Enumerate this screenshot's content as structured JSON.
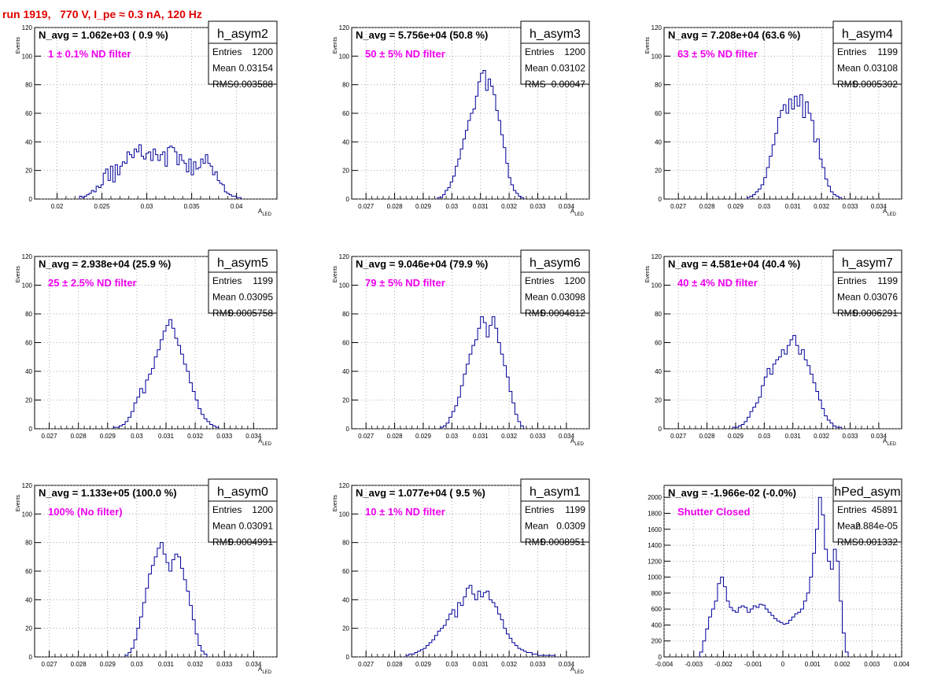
{
  "header": {
    "title": "run 1919,   770 V, I_pe ≈ 0.3 nA, 120 Hz"
  },
  "chart_data": [
    {
      "type": "histogram",
      "name": "h_asym2",
      "navg": "N_avg = 1.062e+03 ( 0.9 %)",
      "filter": "1 ± 0.1% ND filter",
      "stats": {
        "entries": "1200",
        "mean": "0.03154",
        "rms": "0.003588"
      },
      "xlabel": "A_LED",
      "ylabel": "Events",
      "xlim": [
        0.0175,
        0.0445
      ],
      "ylim": [
        0,
        120
      ],
      "xticks": [
        0.02,
        0.025,
        0.03,
        0.035,
        0.04
      ],
      "xticklabels": [
        "0.02",
        "0.025",
        "0.03",
        "0.035",
        "0.04"
      ],
      "yticks": [
        0,
        20,
        40,
        60,
        80,
        100,
        120
      ],
      "yticklabels": [
        "0",
        "20",
        "40",
        "60",
        "80",
        "100",
        "120"
      ],
      "bin_edges_range": [
        0.0225,
        0.0405
      ],
      "counts": [
        2,
        1,
        2,
        3,
        4,
        6,
        5,
        9,
        8,
        10,
        18,
        21,
        13,
        23,
        12,
        24,
        17,
        23,
        26,
        25,
        33,
        31,
        29,
        35,
        33,
        38,
        30,
        28,
        32,
        33,
        27,
        35,
        31,
        27,
        31,
        33,
        23,
        36,
        37,
        36,
        33,
        24,
        31,
        27,
        25,
        19,
        28,
        17,
        26,
        21,
        22,
        28,
        25,
        31,
        25,
        23,
        17,
        19,
        13,
        11,
        10,
        5,
        4,
        3,
        2,
        2,
        1,
        1
      ]
    },
    {
      "type": "histogram",
      "name": "h_asym3",
      "navg": "N_avg = 5.756e+04 (50.8 %)",
      "filter": "50 ± 5% ND filter",
      "stats": {
        "entries": "1200",
        "mean": "0.03102",
        "rms": "0.00047"
      },
      "xlabel": "A_LED",
      "ylabel": "Events",
      "xlim": [
        0.0265,
        0.0348
      ],
      "ylim": [
        0,
        120
      ],
      "xticks": [
        0.027,
        0.028,
        0.029,
        0.03,
        0.031,
        0.032,
        0.033,
        0.034
      ],
      "xticklabels": [
        "0.027",
        "0.028",
        "0.029",
        "0.03",
        "0.031",
        "0.032",
        "0.033",
        "0.034"
      ],
      "yticks": [
        0,
        20,
        40,
        60,
        80,
        100,
        120
      ],
      "yticklabels": [
        "0",
        "20",
        "40",
        "60",
        "80",
        "100",
        "120"
      ],
      "bin_edges_range": [
        0.0295,
        0.0325
      ],
      "counts": [
        1,
        1,
        3,
        6,
        8,
        12,
        16,
        23,
        28,
        35,
        42,
        48,
        55,
        60,
        63,
        72,
        82,
        88,
        90,
        76,
        84,
        79,
        73,
        62,
        55,
        45,
        36,
        25,
        15,
        10,
        6,
        4,
        2,
        1
      ]
    },
    {
      "type": "histogram",
      "name": "h_asym4",
      "navg": "N_avg = 7.208e+04 (63.6 %)",
      "filter": "63 ± 5% ND filter",
      "stats": {
        "entries": "1199",
        "mean": "0.03108",
        "rms": "0.0005302"
      },
      "xlabel": "A_LED",
      "ylabel": "Events",
      "xlim": [
        0.0265,
        0.0348
      ],
      "ylim": [
        0,
        120
      ],
      "xticks": [
        0.027,
        0.028,
        0.029,
        0.03,
        0.031,
        0.032,
        0.033,
        0.034
      ],
      "xticklabels": [
        "0.027",
        "0.028",
        "0.029",
        "0.03",
        "0.031",
        "0.032",
        "0.033",
        "0.034"
      ],
      "yticks": [
        0,
        20,
        40,
        60,
        80,
        100,
        120
      ],
      "yticklabels": [
        "0",
        "20",
        "40",
        "60",
        "80",
        "100",
        "120"
      ],
      "bin_edges_range": [
        0.0294,
        0.0327
      ],
      "counts": [
        1,
        2,
        3,
        5,
        7,
        10,
        15,
        22,
        30,
        38,
        46,
        57,
        62,
        66,
        60,
        70,
        63,
        72,
        65,
        73,
        57,
        68,
        60,
        55,
        40,
        42,
        28,
        22,
        14,
        9,
        5,
        3,
        2,
        1
      ]
    },
    {
      "type": "histogram",
      "name": "h_asym5",
      "navg": "N_avg = 2.938e+04 (25.9 %)",
      "filter": "25 ± 2.5% ND filter",
      "stats": {
        "entries": "1199",
        "mean": "0.03095",
        "rms": "0.0005758"
      },
      "xlabel": "A_LED",
      "ylabel": "Events",
      "xlim": [
        0.0265,
        0.0348
      ],
      "ylim": [
        0,
        120
      ],
      "xticks": [
        0.027,
        0.028,
        0.029,
        0.03,
        0.031,
        0.032,
        0.033,
        0.034
      ],
      "xticklabels": [
        "0.027",
        "0.028",
        "0.029",
        "0.03",
        "0.031",
        "0.032",
        "0.033",
        "0.034"
      ],
      "yticks": [
        0,
        20,
        40,
        60,
        80,
        100,
        120
      ],
      "yticklabels": [
        "0",
        "20",
        "40",
        "60",
        "80",
        "100",
        "120"
      ],
      "bin_edges_range": [
        0.0292,
        0.0328
      ],
      "counts": [
        1,
        1,
        2,
        3,
        5,
        8,
        12,
        18,
        22,
        28,
        25,
        34,
        38,
        42,
        50,
        55,
        62,
        68,
        72,
        76,
        70,
        63,
        58,
        52,
        45,
        40,
        32,
        26,
        20,
        14,
        10,
        7,
        5,
        3,
        2,
        1
      ]
    },
    {
      "type": "histogram",
      "name": "h_asym6",
      "navg": "N_avg = 9.046e+04 (79.9 %)",
      "filter": "79 ± 5% ND filter",
      "stats": {
        "entries": "1200",
        "mean": "0.03098",
        "rms": "0.0004812"
      },
      "xlabel": "A_LED",
      "ylabel": "Events",
      "xlim": [
        0.0265,
        0.0348
      ],
      "ylim": [
        0,
        120
      ],
      "xticks": [
        0.027,
        0.028,
        0.029,
        0.03,
        0.031,
        0.032,
        0.033,
        0.034
      ],
      "xticklabels": [
        "0.027",
        "0.028",
        "0.029",
        "0.03",
        "0.031",
        "0.032",
        "0.033",
        "0.034"
      ],
      "yticks": [
        0,
        20,
        40,
        60,
        80,
        100,
        120
      ],
      "yticklabels": [
        "0",
        "20",
        "40",
        "60",
        "80",
        "100",
        "120"
      ],
      "bin_edges_range": [
        0.0296,
        0.0325
      ],
      "counts": [
        1,
        2,
        4,
        8,
        12,
        16,
        22,
        30,
        38,
        45,
        52,
        58,
        62,
        70,
        78,
        74,
        64,
        72,
        78,
        70,
        60,
        52,
        44,
        36,
        26,
        18,
        10,
        5,
        2
      ]
    },
    {
      "type": "histogram",
      "name": "h_asym7",
      "navg": "N_avg = 4.581e+04 (40.4 %)",
      "filter": "40 ± 4% ND filter",
      "stats": {
        "entries": "1199",
        "mean": "0.03076",
        "rms": "0.0006291"
      },
      "xlabel": "A_LED",
      "ylabel": "Events",
      "xlim": [
        0.0265,
        0.0348
      ],
      "ylim": [
        0,
        120
      ],
      "xticks": [
        0.027,
        0.028,
        0.029,
        0.03,
        0.031,
        0.032,
        0.033,
        0.034
      ],
      "xticklabels": [
        "0.027",
        "0.028",
        "0.029",
        "0.03",
        "0.031",
        "0.032",
        "0.033",
        "0.034"
      ],
      "yticks": [
        0,
        20,
        40,
        60,
        80,
        100,
        120
      ],
      "yticklabels": [
        "0",
        "20",
        "40",
        "60",
        "80",
        "100",
        "120"
      ],
      "bin_edges_range": [
        0.0289,
        0.0327
      ],
      "counts": [
        1,
        1,
        2,
        3,
        5,
        8,
        12,
        15,
        18,
        22,
        30,
        36,
        42,
        38,
        45,
        48,
        50,
        55,
        52,
        58,
        62,
        65,
        58,
        52,
        55,
        48,
        44,
        38,
        32,
        26,
        20,
        14,
        9,
        6,
        4,
        2,
        1,
        1
      ]
    },
    {
      "type": "histogram",
      "name": "h_asym0",
      "navg": "N_avg = 1.133e+05 (100.0 %)",
      "filter": "100% (No filter)",
      "stats": {
        "entries": "1200",
        "mean": "0.03091",
        "rms": "0.0004991"
      },
      "xlabel": "A_LED",
      "ylabel": "Events",
      "xlim": [
        0.0265,
        0.0348
      ],
      "ylim": [
        0,
        120
      ],
      "xticks": [
        0.027,
        0.028,
        0.029,
        0.03,
        0.031,
        0.032,
        0.033,
        0.034
      ],
      "xticklabels": [
        "0.027",
        "0.028",
        "0.029",
        "0.03",
        "0.031",
        "0.032",
        "0.033",
        "0.034"
      ],
      "yticks": [
        0,
        20,
        40,
        60,
        80,
        100,
        120
      ],
      "yticklabels": [
        "0",
        "20",
        "40",
        "60",
        "80",
        "100",
        "120"
      ],
      "bin_edges_range": [
        0.0296,
        0.0324
      ],
      "counts": [
        1,
        3,
        6,
        12,
        20,
        28,
        38,
        48,
        58,
        64,
        70,
        76,
        80,
        72,
        66,
        60,
        68,
        72,
        70,
        62,
        54,
        46,
        36,
        26,
        16,
        8,
        4,
        2
      ]
    },
    {
      "type": "histogram",
      "name": "h_asym1",
      "navg": "N_avg = 1.077e+04 ( 9.5 %)",
      "filter": "10 ± 1% ND filter",
      "stats": {
        "entries": "1199",
        "mean": "0.0309",
        "rms": "0.0008951"
      },
      "xlabel": "A_LED",
      "ylabel": "Events",
      "xlim": [
        0.0265,
        0.0348
      ],
      "ylim": [
        0,
        120
      ],
      "xticks": [
        0.027,
        0.028,
        0.029,
        0.03,
        0.031,
        0.032,
        0.033,
        0.034
      ],
      "xticklabels": [
        "0.027",
        "0.028",
        "0.029",
        "0.03",
        "0.031",
        "0.032",
        "0.033",
        "0.034"
      ],
      "yticks": [
        0,
        20,
        40,
        60,
        80,
        100,
        120
      ],
      "yticklabels": [
        "0",
        "20",
        "40",
        "60",
        "80",
        "100",
        "120"
      ],
      "bin_edges_range": [
        0.0284,
        0.0336
      ],
      "counts": [
        1,
        2,
        2,
        3,
        4,
        5,
        6,
        8,
        10,
        12,
        15,
        18,
        20,
        22,
        26,
        30,
        33,
        28,
        38,
        36,
        42,
        48,
        50,
        44,
        40,
        46,
        42,
        45,
        46,
        40,
        38,
        35,
        30,
        26,
        20,
        16,
        13,
        10,
        8,
        6,
        5,
        4,
        3,
        3,
        2,
        2,
        1,
        1,
        1,
        1,
        1,
        1
      ]
    },
    {
      "type": "histogram",
      "name": "hPed_asym",
      "navg": "N_avg = -1.966e-02 (-0.0%)",
      "filter": "Shutter Closed",
      "stats": {
        "entries": "45891",
        "mean": "-2.884e-05",
        "rms": "0.001332"
      },
      "xlabel": "",
      "ylabel": "",
      "xlim": [
        -0.004,
        0.004
      ],
      "ylim": [
        0,
        2150
      ],
      "xticks": [
        -0.004,
        -0.003,
        -0.002,
        -0.001,
        0,
        0.001,
        0.002,
        0.003,
        0.004
      ],
      "xticklabels": [
        "-0.004",
        "-0.003",
        "-0.002",
        "-0.001",
        "0",
        "0.001",
        "0.002",
        "0.003",
        "0.004"
      ],
      "yticks": [
        0,
        200,
        400,
        600,
        800,
        1000,
        1200,
        1400,
        1600,
        1800,
        2000
      ],
      "yticklabels": [
        "0",
        "200",
        "400",
        "600",
        "800",
        "1000",
        "1200",
        "1400",
        "1600",
        "1800",
        "2000"
      ],
      "bin_edges_range": [
        -0.0028,
        0.0022
      ],
      "counts": [
        60,
        200,
        350,
        500,
        600,
        700,
        920,
        1000,
        880,
        700,
        620,
        580,
        560,
        620,
        640,
        620,
        560,
        600,
        640,
        620,
        660,
        650,
        600,
        560,
        520,
        480,
        450,
        430,
        410,
        420,
        460,
        500,
        540,
        560,
        600,
        700,
        800,
        1000,
        1300,
        1600,
        2000,
        1780,
        1350,
        1200,
        1100,
        1350,
        1200,
        700,
        300,
        60
      ]
    }
  ]
}
